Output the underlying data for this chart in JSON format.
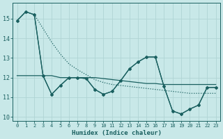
{
  "xlabel": "Humidex (Indice chaleur)",
  "background_color": "#c8e8e8",
  "grid_color": "#b0d4d4",
  "line_color": "#1a6060",
  "xlim": [
    -0.5,
    23.5
  ],
  "ylim": [
    9.8,
    15.8
  ],
  "xticks": [
    0,
    1,
    2,
    3,
    4,
    5,
    6,
    7,
    8,
    9,
    10,
    11,
    12,
    13,
    14,
    15,
    16,
    17,
    18,
    19,
    20,
    21,
    22,
    23
  ],
  "yticks": [
    10,
    11,
    12,
    13,
    14,
    15
  ],
  "series_dotted": [
    14.9,
    15.35,
    15.2,
    14.5,
    13.8,
    13.2,
    12.7,
    12.4,
    12.15,
    11.9,
    11.75,
    11.65,
    11.6,
    11.55,
    11.5,
    11.45,
    11.4,
    11.35,
    11.3,
    11.25,
    11.2,
    11.2,
    11.2,
    11.2
  ],
  "series_flat": [
    12.1,
    12.1,
    12.1,
    12.1,
    12.1,
    12.0,
    12.0,
    12.0,
    12.0,
    12.0,
    11.95,
    11.9,
    11.85,
    11.8,
    11.75,
    11.7,
    11.7,
    11.65,
    11.65,
    11.65,
    11.65,
    11.65,
    11.65,
    11.65
  ],
  "series_jagged1": [
    14.9,
    15.35,
    15.2,
    12.1,
    11.15,
    11.6,
    12.0,
    12.0,
    11.95,
    11.4,
    11.15,
    11.3,
    11.85,
    12.45,
    12.8,
    13.05,
    13.05,
    11.55,
    10.3,
    10.15,
    10.4,
    10.6,
    11.5,
    11.5
  ],
  "series_jagged2": [
    14.9,
    15.35,
    15.2,
    12.1,
    11.15,
    11.6,
    12.0,
    12.0,
    11.95,
    11.4,
    11.15,
    11.3,
    11.85,
    12.45,
    12.8,
    13.05,
    13.05,
    11.55,
    10.3,
    10.15,
    10.4,
    10.6,
    11.5,
    11.5
  ]
}
